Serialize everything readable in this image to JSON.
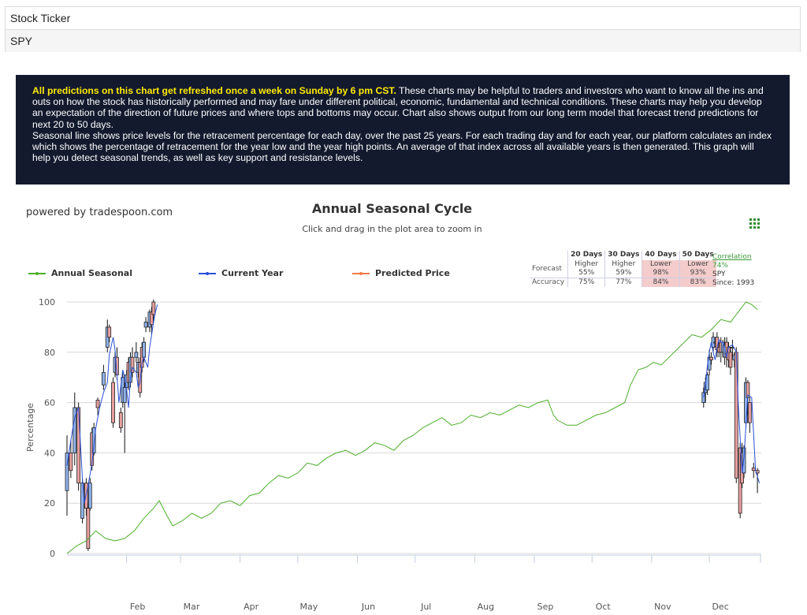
{
  "ticker": {
    "label": "Stock Ticker",
    "value": "SPY"
  },
  "info": {
    "highlight": "All predictions on this chart get refreshed once a week on Sunday by 6 pm CST.",
    "paragraph1": " These charts may be helpful to traders and investors who want to know all the ins and outs on how the stock has historically performed and may fare under different political, economic, fundamental and technical conditions. These charts may help you develop an expectation of the direction of future prices and where tops and bottoms may occur. Chart also shows output from our long term model that forecast trend predictions for next 20 to 50 days.",
    "paragraph2": "Seasonal line shows price levels for the retracement percentage for each day, over the past 25 years. For each trading day and for each year, our platform calculates an index which shows the percentage of retracement for the year low and the year high points. An average of that index across all available years is then generated. This graph will help you detect seasonal trends, as well as key support and resistance levels."
  },
  "powered_by": "powered by tradespoon.com",
  "menu_icon": "menu-grid-icon",
  "forecast_table": {
    "headers": [
      "20 Days",
      "30 Days",
      "40 Days",
      "50 Days"
    ],
    "forecast_label": "Forecast",
    "forecast": [
      {
        "direction": "Higher",
        "pct": "55%",
        "tone": "neutral"
      },
      {
        "direction": "Higher",
        "pct": "59%",
        "tone": "neutral"
      },
      {
        "direction": "Lower",
        "pct": "98%",
        "tone": "lower"
      },
      {
        "direction": "Lower",
        "pct": "93%",
        "tone": "lower"
      }
    ],
    "accuracy_label": "Accuracy",
    "accuracy": [
      "75%",
      "77%",
      "84%",
      "83%"
    ]
  },
  "correlation": {
    "label": "Correlation",
    "value": "74%",
    "symbol": "SPY",
    "since": "Since: 1993"
  },
  "colors": {
    "seasonal": "#4caf2a",
    "current": "#2a4fd6",
    "predicted": "#f07a45",
    "candle_up": "#8fb2ea",
    "candle_down": "#e8a0a0",
    "lower_bg": "#f4cccc"
  },
  "chart_data": {
    "type": "line",
    "title": "Annual Seasonal Cycle",
    "subtitle": "Click and drag in the plot area to zoom in",
    "xlabel": "",
    "ylabel": "Percentage",
    "ylim": [
      0,
      100
    ],
    "y_ticks": [
      0,
      20,
      40,
      60,
      80,
      100
    ],
    "x_ticks": [
      "Feb",
      "Mar",
      "Apr",
      "May",
      "Jun",
      "Jul",
      "Aug",
      "Sep",
      "Oct",
      "Nov",
      "Dec"
    ],
    "x_tick_days": [
      46,
      74,
      105,
      135,
      166,
      196,
      227,
      258,
      288,
      319,
      349
    ],
    "x_range_days": [
      15,
      376
    ],
    "grid": true,
    "legend_position": "top",
    "series": [
      {
        "name": "Annual Seasonal",
        "points": [
          [
            15,
            0
          ],
          [
            20,
            3
          ],
          [
            25,
            5
          ],
          [
            30,
            9
          ],
          [
            35,
            6
          ],
          [
            40,
            5
          ],
          [
            45,
            6
          ],
          [
            50,
            9
          ],
          [
            55,
            14
          ],
          [
            60,
            18
          ],
          [
            63,
            21
          ],
          [
            67,
            15
          ],
          [
            70,
            11
          ],
          [
            75,
            13
          ],
          [
            80,
            16
          ],
          [
            85,
            14
          ],
          [
            90,
            16
          ],
          [
            95,
            20
          ],
          [
            100,
            21
          ],
          [
            105,
            19
          ],
          [
            110,
            23
          ],
          [
            115,
            24
          ],
          [
            120,
            28
          ],
          [
            125,
            31
          ],
          [
            130,
            30
          ],
          [
            135,
            32
          ],
          [
            140,
            36
          ],
          [
            145,
            35
          ],
          [
            150,
            38
          ],
          [
            155,
            40
          ],
          [
            160,
            41
          ],
          [
            165,
            39
          ],
          [
            170,
            41
          ],
          [
            175,
            44
          ],
          [
            180,
            43
          ],
          [
            185,
            41
          ],
          [
            190,
            45
          ],
          [
            195,
            47
          ],
          [
            200,
            50
          ],
          [
            205,
            52
          ],
          [
            210,
            54
          ],
          [
            215,
            51
          ],
          [
            220,
            52
          ],
          [
            225,
            55
          ],
          [
            230,
            54
          ],
          [
            235,
            56
          ],
          [
            240,
            55
          ],
          [
            245,
            57
          ],
          [
            250,
            59
          ],
          [
            255,
            58
          ],
          [
            260,
            60
          ],
          [
            265,
            61
          ],
          [
            268,
            55
          ],
          [
            270,
            53
          ],
          [
            275,
            51
          ],
          [
            280,
            51
          ],
          [
            285,
            53
          ],
          [
            290,
            55
          ],
          [
            295,
            56
          ],
          [
            300,
            58
          ],
          [
            305,
            60
          ],
          [
            308,
            67
          ],
          [
            312,
            73
          ],
          [
            316,
            74
          ],
          [
            320,
            76
          ],
          [
            324,
            75
          ],
          [
            328,
            78
          ],
          [
            332,
            81
          ],
          [
            336,
            84
          ],
          [
            340,
            87
          ],
          [
            345,
            86
          ],
          [
            350,
            89
          ],
          [
            355,
            93
          ],
          [
            360,
            92
          ],
          [
            365,
            97
          ],
          [
            368,
            100
          ],
          [
            371,
            99
          ],
          [
            374,
            97
          ]
        ]
      },
      {
        "name": "Current Year",
        "points": [
          [
            15,
            35
          ],
          [
            17,
            45
          ],
          [
            19,
            54
          ],
          [
            21,
            58
          ],
          [
            23,
            30
          ],
          [
            24,
            20
          ],
          [
            26,
            27
          ],
          [
            28,
            36
          ],
          [
            30,
            50
          ],
          [
            32,
            58
          ],
          [
            34,
            64
          ],
          [
            36,
            68
          ],
          [
            37,
            79
          ],
          [
            39,
            86
          ],
          [
            40,
            81
          ],
          [
            42,
            60
          ],
          [
            44,
            73
          ],
          [
            45,
            70
          ],
          [
            46,
            65
          ],
          [
            47,
            58
          ],
          [
            48,
            70
          ],
          [
            49,
            74
          ],
          [
            51,
            72
          ],
          [
            52,
            66
          ],
          [
            53,
            68
          ],
          [
            54,
            76
          ],
          [
            55,
            78
          ],
          [
            57,
            74
          ],
          [
            58,
            82
          ],
          [
            59,
            87
          ],
          [
            60,
            92
          ],
          [
            61,
            96
          ],
          [
            62,
            99
          ],
          [
            346,
            62
          ],
          [
            347,
            67
          ],
          [
            348,
            75
          ],
          [
            349,
            80
          ],
          [
            350,
            84
          ],
          [
            351,
            80
          ],
          [
            352,
            77
          ],
          [
            353,
            82
          ],
          [
            354,
            85
          ],
          [
            355,
            84
          ],
          [
            356,
            84
          ],
          [
            357,
            82
          ],
          [
            358,
            78
          ],
          [
            359,
            82
          ],
          [
            361,
            83
          ],
          [
            363,
            80
          ],
          [
            364,
            60
          ],
          [
            366,
            32
          ],
          [
            367,
            38
          ],
          [
            369,
            63
          ],
          [
            371,
            62
          ],
          [
            373,
            33
          ],
          [
            375,
            28
          ]
        ]
      },
      {
        "name": "Predicted Price",
        "points": []
      }
    ],
    "candles": [
      [
        15,
        25,
        40,
        15,
        47
      ],
      [
        17,
        40,
        33,
        30,
        45
      ],
      [
        19,
        40,
        58,
        35,
        64
      ],
      [
        21,
        58,
        28,
        25,
        60
      ],
      [
        23,
        14,
        28,
        12,
        30
      ],
      [
        25,
        28,
        18,
        15,
        30
      ],
      [
        26,
        18,
        2,
        1,
        20
      ],
      [
        27,
        18,
        28,
        17,
        30
      ],
      [
        28,
        48,
        35,
        33,
        50
      ],
      [
        29,
        40,
        50,
        39,
        52
      ],
      [
        31,
        61,
        58,
        55,
        62
      ],
      [
        34,
        67,
        72,
        65,
        75
      ],
      [
        36,
        82,
        90,
        80,
        93
      ],
      [
        37,
        90,
        86,
        84,
        91
      ],
      [
        39,
        68,
        52,
        50,
        70
      ],
      [
        40,
        72,
        78,
        70,
        80
      ],
      [
        41,
        78,
        71,
        69,
        82
      ],
      [
        43,
        56,
        50,
        48,
        58
      ],
      [
        44,
        60,
        70,
        58,
        72
      ],
      [
        45,
        60,
        66,
        40,
        68
      ],
      [
        46,
        66,
        71,
        64,
        73
      ],
      [
        47,
        76,
        68,
        65,
        78
      ],
      [
        48,
        68,
        78,
        66,
        80
      ],
      [
        49,
        78,
        72,
        70,
        82
      ],
      [
        51,
        78,
        80,
        76,
        84
      ],
      [
        52,
        72,
        76,
        70,
        78
      ],
      [
        53,
        76,
        64,
        62,
        78
      ],
      [
        54,
        82,
        74,
        72,
        84
      ],
      [
        55,
        78,
        84,
        76,
        86
      ],
      [
        56,
        90,
        92,
        88,
        94
      ],
      [
        58,
        90,
        96,
        88,
        97
      ],
      [
        59,
        96,
        91,
        87,
        98
      ],
      [
        60,
        100,
        95,
        92,
        101
      ],
      [
        346,
        60,
        64,
        58,
        66
      ],
      [
        347,
        64,
        68,
        60,
        70
      ],
      [
        348,
        65,
        71,
        63,
        72
      ],
      [
        349,
        73,
        78,
        71,
        81
      ],
      [
        350,
        78,
        77,
        75,
        80
      ],
      [
        351,
        82,
        86,
        80,
        88
      ],
      [
        352,
        84,
        84,
        82,
        86
      ],
      [
        353,
        86,
        81,
        78,
        88
      ],
      [
        354,
        82,
        80,
        78,
        84
      ],
      [
        355,
        84,
        80,
        76,
        86
      ],
      [
        356,
        80,
        84,
        78,
        85
      ],
      [
        357,
        78,
        83,
        75,
        86
      ],
      [
        358,
        84,
        78,
        74,
        86
      ],
      [
        359,
        82,
        77,
        74,
        84
      ],
      [
        360,
        80,
        74,
        71,
        82
      ],
      [
        361,
        82,
        82,
        78,
        85
      ],
      [
        362,
        77,
        79,
        74,
        80
      ],
      [
        363,
        80,
        30,
        28,
        82
      ],
      [
        365,
        42,
        16,
        14,
        44
      ],
      [
        366,
        40,
        28,
        26,
        44
      ],
      [
        367,
        32,
        42,
        30,
        43
      ],
      [
        368,
        52,
        68,
        50,
        70
      ],
      [
        369,
        68,
        62,
        55,
        69
      ],
      [
        370,
        60,
        52,
        48,
        62
      ],
      [
        372,
        34,
        33,
        30,
        36
      ],
      [
        374,
        33,
        32,
        24,
        34
      ]
    ]
  }
}
